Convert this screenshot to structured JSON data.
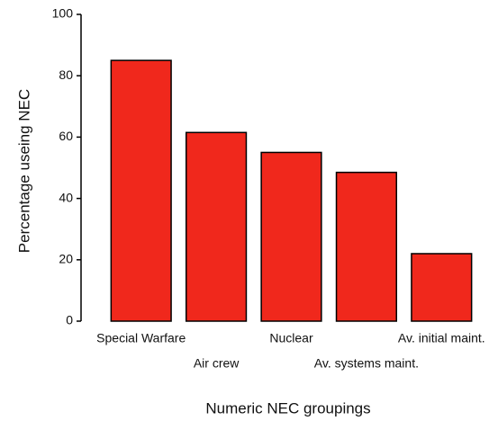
{
  "chart_data": {
    "type": "bar",
    "x_label": "Numeric NEC groupings",
    "y_label": "Percentage useing NEC",
    "categories": [
      "Special Warfare",
      "Air crew",
      "Nuclear",
      "Av. systems maint.",
      "Av. initial maint."
    ],
    "values": [
      85,
      61.5,
      55,
      48.5,
      22
    ],
    "color": "#f0281c",
    "ylim": [
      0,
      100
    ],
    "yticks": [
      0,
      20,
      40,
      60,
      80,
      100
    ]
  }
}
